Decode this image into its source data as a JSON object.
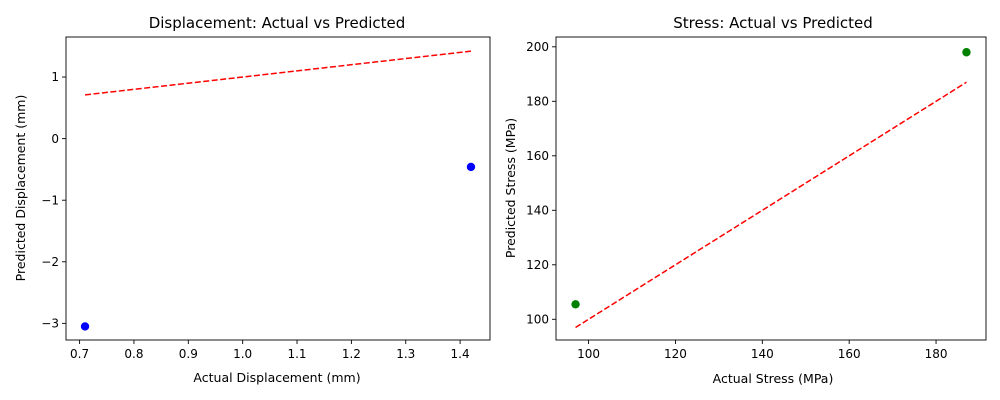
{
  "chart_data": [
    {
      "type": "scatter",
      "title": "Displacement: Actual vs Predicted",
      "xlabel": "Actual Displacement (mm)",
      "ylabel": "Predicted Displacement (mm)",
      "xlim": [
        0.675,
        1.455
      ],
      "ylim": [
        -3.27,
        1.65
      ],
      "xticks": [
        0.7,
        0.8,
        0.9,
        1.0,
        1.1,
        1.2,
        1.3,
        1.4
      ],
      "xtick_labels": [
        "0.7",
        "0.8",
        "0.9",
        "1.0",
        "1.1",
        "1.2",
        "1.3",
        "1.4"
      ],
      "yticks": [
        1,
        0,
        -1,
        -2,
        -3
      ],
      "ytick_labels": [
        "1",
        "0",
        "−1",
        "−2",
        "−3"
      ],
      "grid": false,
      "points": {
        "x": [
          0.71,
          1.42
        ],
        "y": [
          -3.05,
          -0.46
        ],
        "color": "#0000ff"
      },
      "reference_line": {
        "x": [
          0.71,
          1.42
        ],
        "y": [
          0.71,
          1.42
        ],
        "color": "#ff0000",
        "style": "dashed"
      }
    },
    {
      "type": "scatter",
      "title": "Stress: Actual vs Predicted",
      "xlabel": "Actual Stress (MPa)",
      "ylabel": "Predicted Stress (MPa)",
      "xlim": [
        92.5,
        191.5
      ],
      "ylim": [
        92.4,
        203.6
      ],
      "xticks": [
        100,
        120,
        140,
        160,
        180
      ],
      "xtick_labels": [
        "100",
        "120",
        "140",
        "160",
        "180"
      ],
      "yticks": [
        100,
        120,
        140,
        160,
        180,
        200
      ],
      "ytick_labels": [
        "100",
        "120",
        "140",
        "160",
        "180",
        "200"
      ],
      "grid": false,
      "points": {
        "x": [
          97,
          187
        ],
        "y": [
          105.5,
          198
        ],
        "color": "#008000"
      },
      "reference_line": {
        "x": [
          97,
          187
        ],
        "y": [
          97,
          187
        ],
        "color": "#ff0000",
        "style": "dashed"
      }
    }
  ]
}
